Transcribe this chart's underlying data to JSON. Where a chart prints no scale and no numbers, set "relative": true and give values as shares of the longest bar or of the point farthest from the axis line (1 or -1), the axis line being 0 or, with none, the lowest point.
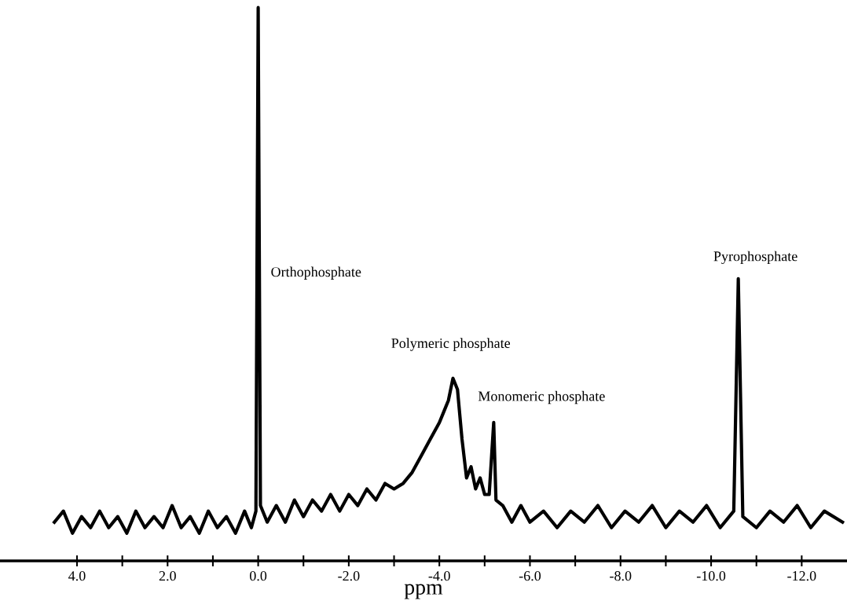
{
  "chart_data": {
    "type": "line",
    "relative": true,
    "xlabel": "ppm",
    "x": [
      4.5,
      4.3,
      4.1,
      3.9,
      3.7,
      3.5,
      3.3,
      3.1,
      2.9,
      2.7,
      2.5,
      2.3,
      2.1,
      1.9,
      1.7,
      1.5,
      1.3,
      1.1,
      0.9,
      0.7,
      0.5,
      0.3,
      0.15,
      0.05,
      0.0,
      -0.05,
      -0.2,
      -0.4,
      -0.6,
      -0.8,
      -1.0,
      -1.2,
      -1.4,
      -1.6,
      -1.8,
      -2.0,
      -2.2,
      -2.4,
      -2.6,
      -2.8,
      -3.0,
      -3.2,
      -3.4,
      -3.6,
      -3.8,
      -4.0,
      -4.1,
      -4.2,
      -4.3,
      -4.4,
      -4.5,
      -4.6,
      -4.7,
      -4.8,
      -4.9,
      -5.0,
      -5.1,
      -5.2,
      -5.25,
      -5.4,
      -5.6,
      -5.8,
      -6.0,
      -6.3,
      -6.6,
      -6.9,
      -7.2,
      -7.5,
      -7.8,
      -8.1,
      -8.4,
      -8.7,
      -9.0,
      -9.3,
      -9.6,
      -9.9,
      -10.2,
      -10.5,
      -10.6,
      -10.7,
      -11.0,
      -11.3,
      -11.6,
      -11.9,
      -12.2,
      -12.5,
      -12.9
    ],
    "series": [
      {
        "color": "#000000",
        "values": [
          0.07,
          0.09,
          0.05,
          0.08,
          0.06,
          0.09,
          0.06,
          0.08,
          0.05,
          0.09,
          0.06,
          0.08,
          0.06,
          0.1,
          0.06,
          0.08,
          0.05,
          0.09,
          0.06,
          0.08,
          0.05,
          0.09,
          0.06,
          0.09,
          1.0,
          0.1,
          0.07,
          0.1,
          0.07,
          0.11,
          0.08,
          0.11,
          0.09,
          0.12,
          0.09,
          0.12,
          0.1,
          0.13,
          0.11,
          0.14,
          0.13,
          0.14,
          0.16,
          0.19,
          0.22,
          0.25,
          0.27,
          0.29,
          0.33,
          0.31,
          0.22,
          0.15,
          0.17,
          0.13,
          0.15,
          0.12,
          0.12,
          0.25,
          0.11,
          0.1,
          0.07,
          0.1,
          0.07,
          0.09,
          0.06,
          0.09,
          0.07,
          0.1,
          0.06,
          0.09,
          0.07,
          0.1,
          0.06,
          0.09,
          0.07,
          0.1,
          0.06,
          0.09,
          0.51,
          0.08,
          0.06,
          0.09,
          0.07,
          0.1,
          0.06,
          0.09,
          0.07
        ]
      }
    ],
    "xlim": [
      5.7,
      -13.0
    ],
    "xticks": [
      {
        "value": 4,
        "label": "4.0"
      },
      {
        "value": 3,
        "label": null
      },
      {
        "value": 2,
        "label": "2.0"
      },
      {
        "value": 1,
        "label": null
      },
      {
        "value": 0,
        "label": "0.0"
      },
      {
        "value": -1,
        "label": null
      },
      {
        "value": -2,
        "label": "-2.0"
      },
      {
        "value": -3,
        "label": null
      },
      {
        "value": -4,
        "label": "-4.0"
      },
      {
        "value": -5,
        "label": null
      },
      {
        "value": -6,
        "label": "-6.0"
      },
      {
        "value": -7,
        "label": null
      },
      {
        "value": -8,
        "label": "-8.0"
      },
      {
        "value": -9,
        "label": null
      },
      {
        "value": -10,
        "label": "-10.0"
      },
      {
        "value": -11,
        "label": null
      },
      {
        "value": -12,
        "label": "-12.0"
      }
    ],
    "annotations": [
      {
        "text": "Orthophosphate",
        "x": 0.0,
        "y": 0.52
      },
      {
        "text": "Polymeric phosphate",
        "x": -4.3,
        "y": 0.33
      },
      {
        "text": "Monomeric phosphate",
        "x": -5.2,
        "y": 0.25
      },
      {
        "text": "Pyrophosphate",
        "x": -10.6,
        "y": 0.51
      }
    ],
    "grid": false,
    "legend": false,
    "marker": "none",
    "line_style": "solid"
  }
}
